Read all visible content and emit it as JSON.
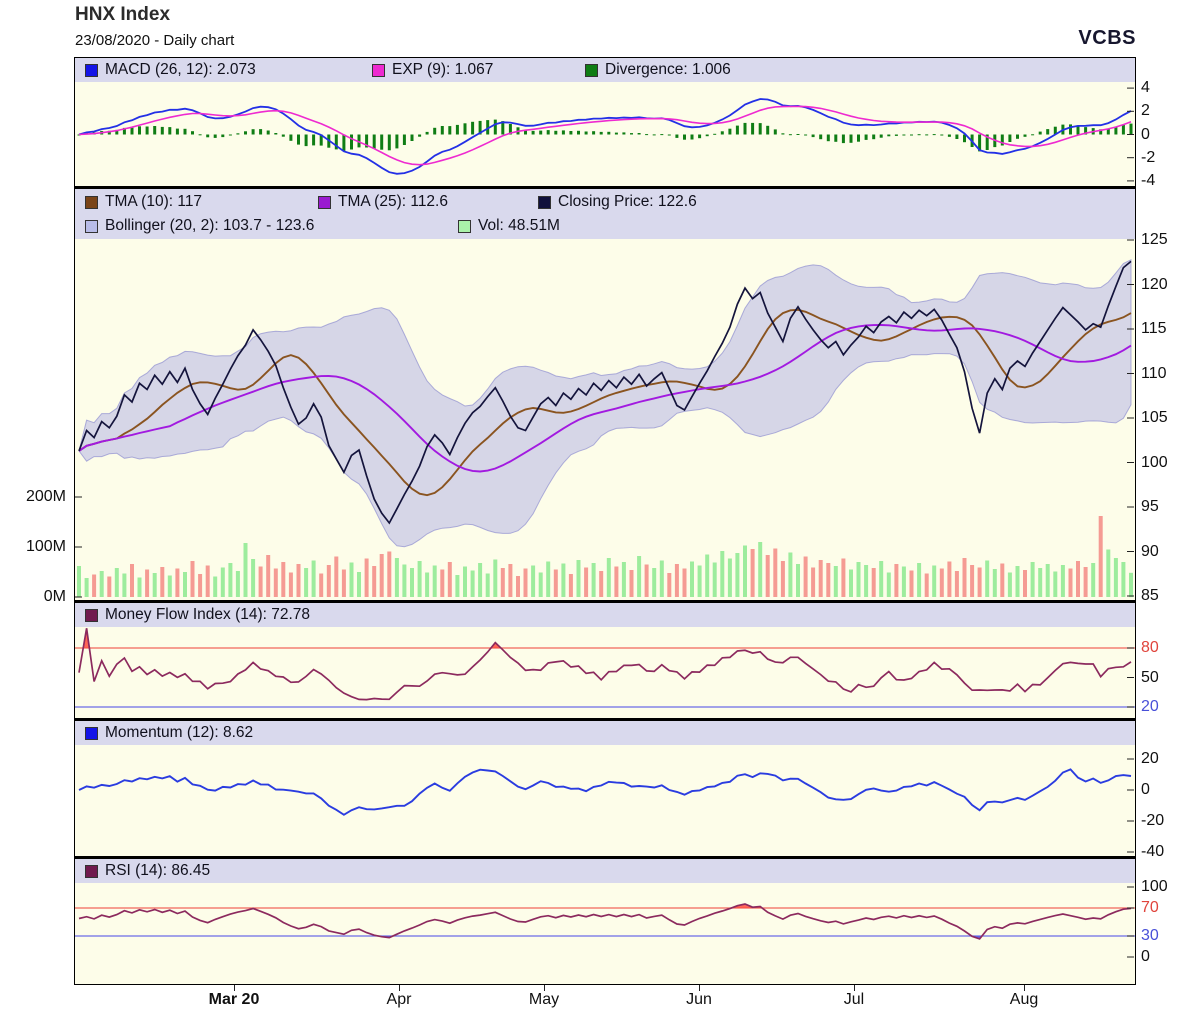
{
  "header": {
    "title": "HNX Index",
    "subtitle": "23/08/2020 - Daily chart",
    "brand": "VCBS"
  },
  "x_axis": {
    "months": [
      {
        "label": "Mar 20",
        "index": 20.5,
        "bold": true
      },
      {
        "label": "Apr",
        "index": 42.3,
        "bold": false
      },
      {
        "label": "May",
        "index": 61.4,
        "bold": false
      },
      {
        "label": "Jun",
        "index": 81.9,
        "bold": false
      },
      {
        "label": "Jul",
        "index": 102.4,
        "bold": false
      },
      {
        "label": "Aug",
        "index": 124.8,
        "bold": false
      }
    ]
  },
  "chart_data": [
    {
      "id": "macd",
      "type": "line",
      "title": "MACD indicator panel",
      "legend": [
        {
          "label": "MACD (26, 12): 2.073",
          "color": "#1414e6"
        },
        {
          "label": "EXP (9): 1.067",
          "color": "#ee2ad0"
        },
        {
          "label": "Divergence: 1.006",
          "color": "#0f7d14"
        }
      ],
      "params": {
        "macd_slow": 26,
        "macd_fast": 12,
        "signal": 9
      },
      "current": {
        "macd": 2.073,
        "exp": 1.067,
        "divergence": 1.006
      },
      "ylim": [
        -4.4,
        4.5
      ],
      "yticks": [
        4,
        2,
        0,
        -2,
        -4
      ],
      "derived_from": "close",
      "colors": {
        "macd": "#2330e6",
        "exp": "#ee2ad0",
        "divergence": "#0f7d14"
      }
    },
    {
      "id": "price",
      "type": "line+area+bar",
      "title": "HNX Index price with TMA, Bollinger bands and volume",
      "legend": [
        {
          "label": "TMA (10): 117",
          "color": "#7a4418"
        },
        {
          "label": "TMA (25): 112.6",
          "color": "#9a1ad0"
        },
        {
          "label": "Closing Price: 122.6",
          "color": "#10103c"
        },
        {
          "label": "Bollinger (20, 2): 103.7 - 123.6",
          "color": "#b8bce8"
        },
        {
          "label": "Vol: 48.51M",
          "color": "#aaf2aa"
        }
      ],
      "current": {
        "tma10": 117,
        "tma25": 112.6,
        "close": 122.6,
        "bollinger_low": 103.7,
        "bollinger_high": 123.6,
        "vol": "48.51M"
      },
      "ylim": [
        85,
        125
      ],
      "yticks": [
        125,
        120,
        115,
        110,
        105,
        100,
        95,
        90,
        85
      ],
      "volume_axis": {
        "ticks": [
          {
            "label": "200M",
            "value": 200
          },
          {
            "label": "100M",
            "value": 100
          },
          {
            "label": "0M",
            "value": 0
          }
        ]
      },
      "close": [
        101.3,
        103.6,
        102.8,
        104.6,
        103.9,
        105.2,
        107.6,
        106.8,
        108.9,
        108.2,
        109.8,
        108.8,
        110.2,
        109.0,
        110.6,
        108.2,
        106.6,
        105.4,
        107.2,
        108.8,
        110.5,
        112.0,
        113.2,
        114.9,
        113.8,
        112.5,
        110.9,
        108.4,
        106.2,
        104.3,
        105.0,
        106.6,
        105.1,
        101.9,
        100.4,
        98.9,
        100.8,
        101.4,
        98.5,
        95.9,
        94.3,
        93.2,
        94.8,
        96.4,
        97.9,
        99.6,
        101.8,
        103.1,
        102.2,
        100.9,
        102.8,
        104.4,
        105.6,
        106.3,
        107.4,
        108.4,
        106.9,
        105.2,
        103.9,
        103.6,
        105.1,
        106.6,
        107.3,
        106.4,
        107.8,
        107.1,
        108.3,
        107.6,
        108.9,
        108.1,
        109.2,
        108.4,
        109.6,
        108.8,
        109.9,
        108.6,
        109.4,
        110.1,
        108.3,
        106.4,
        105.9,
        107.4,
        108.9,
        110.3,
        111.9,
        113.4,
        115.2,
        117.8,
        119.6,
        118.4,
        119.1,
        116.8,
        115.2,
        113.6,
        116.2,
        117.5,
        116.1,
        114.9,
        113.8,
        112.9,
        113.6,
        112.1,
        113.2,
        114.1,
        115.3,
        114.6,
        115.8,
        116.4,
        115.7,
        116.9,
        116.2,
        117.1,
        116.5,
        117.2,
        116.0,
        114.4,
        112.9,
        110.2,
        106.1,
        103.3,
        107.8,
        109.4,
        108.2,
        110.6,
        111.4,
        110.8,
        112.3,
        113.6,
        114.9,
        116.2,
        117.4,
        116.6,
        115.8,
        114.9,
        115.6,
        115.2,
        117.6,
        119.8,
        121.9,
        122.6
      ],
      "volume_m": [
        62,
        38,
        45,
        52,
        41,
        58,
        47,
        66,
        39,
        55,
        48,
        60,
        43,
        57,
        50,
        72,
        46,
        63,
        41,
        59,
        68,
        52,
        108,
        76,
        61,
        84,
        57,
        70,
        49,
        66,
        58,
        73,
        47,
        64,
        81,
        55,
        69,
        50,
        77,
        62,
        86,
        91,
        78,
        65,
        58,
        72,
        49,
        63,
        55,
        70,
        44,
        61,
        53,
        68,
        47,
        75,
        58,
        66,
        42,
        57,
        63,
        49,
        71,
        55,
        67,
        46,
        74,
        59,
        68,
        52,
        78,
        61,
        70,
        54,
        82,
        65,
        58,
        73,
        48,
        66,
        57,
        71,
        63,
        85,
        69,
        92,
        77,
        88,
        103,
        96,
        110,
        84,
        97,
        72,
        89,
        66,
        81,
        59,
        74,
        68,
        62,
        77,
        55,
        70,
        64,
        58,
        72,
        49,
        66,
        61,
        53,
        68,
        47,
        63,
        57,
        71,
        52,
        78,
        64,
        59,
        73,
        56,
        67,
        49,
        62,
        54,
        70,
        58,
        66,
        51,
        64,
        57,
        72,
        60,
        68,
        162,
        95,
        78,
        70,
        48.5
      ],
      "colors": {
        "close": "#14143c",
        "tma10": "#8a5420",
        "tma25": "#a21ae0",
        "bollinger_fill": "#b6b6e6",
        "bollinger_edge": "#8f8fd0",
        "vol_up": "#9dec9d",
        "vol_down": "#f59b93"
      }
    },
    {
      "id": "mfi",
      "type": "line",
      "title": "Money Flow Index panel",
      "legend": [
        {
          "label": "Money Flow Index (14): 72.78",
          "color": "#701a4e"
        }
      ],
      "period": 14,
      "current": 72.78,
      "yticks": [
        {
          "value": 80,
          "color": "#e0443c"
        },
        {
          "value": 50,
          "color": "#111111"
        },
        {
          "value": 20,
          "color": "#4850d8"
        }
      ],
      "hlines": [
        80,
        20
      ],
      "colors": {
        "line": "#8c2a5e",
        "upper_line": "#f2655c",
        "lower_line": "#6b6be8",
        "over_fill": "#ff4b3e"
      }
    },
    {
      "id": "momentum",
      "type": "line",
      "title": "Momentum panel",
      "legend": [
        {
          "label": "Momentum (12): 8.62",
          "color": "#1414e6"
        }
      ],
      "period": 12,
      "current": 8.62,
      "yticks": [
        20,
        0,
        -20,
        -40
      ],
      "colors": {
        "line": "#2a3ce0"
      }
    },
    {
      "id": "rsi",
      "type": "line",
      "title": "RSI panel",
      "legend": [
        {
          "label": "RSI (14): 86.45",
          "color": "#701a4e"
        }
      ],
      "period": 14,
      "current": 86.45,
      "yticks": [
        {
          "value": 100,
          "color": "#111111"
        },
        {
          "value": 70,
          "color": "#e0443c"
        },
        {
          "value": 30,
          "color": "#4850d8"
        },
        {
          "value": 0,
          "color": "#111111"
        }
      ],
      "hlines": [
        70,
        30
      ],
      "colors": {
        "line": "#8c2a5e",
        "upper_line": "#f2655c",
        "lower_line": "#6b6be8",
        "over_fill": "#ff4b3e",
        "under_fill": "#5a5ae8"
      }
    }
  ]
}
